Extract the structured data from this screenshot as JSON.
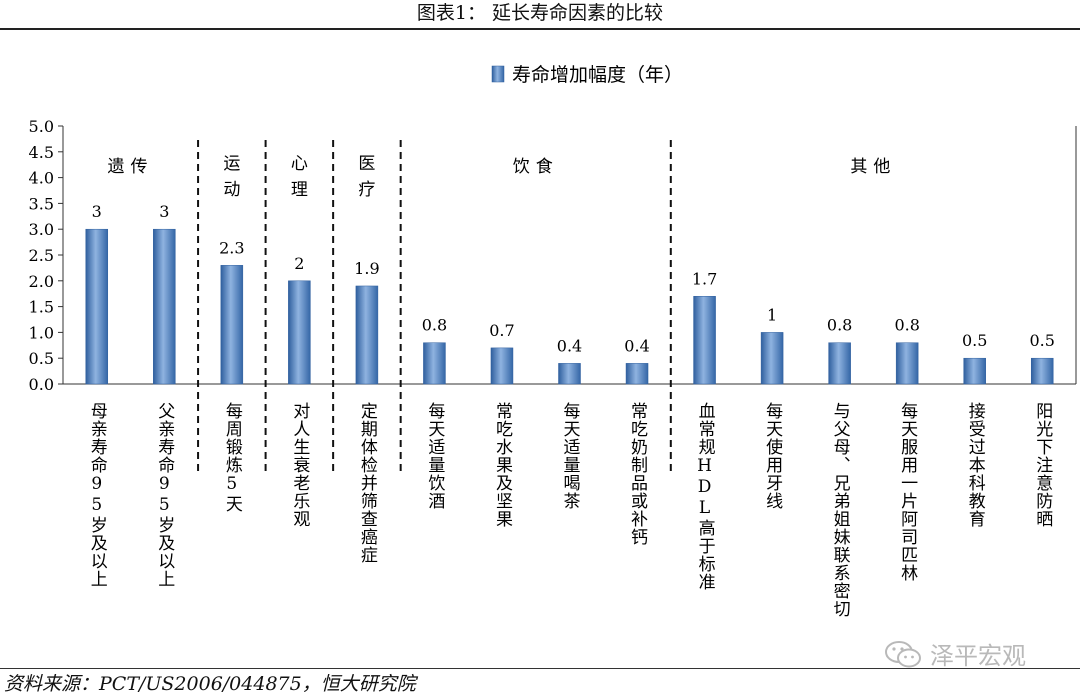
{
  "figure": {
    "title": "图表1：  延长寿命因素的比较",
    "source": "资料来源：PCT/US2006/044875，恒大研究院",
    "watermark": "泽平宏观"
  },
  "chart_data": {
    "type": "bar",
    "title": "",
    "legend": {
      "label": "寿命增加幅度（年）",
      "position": "top-center"
    },
    "ylim": [
      0,
      5
    ],
    "yticks": [
      "0.0",
      "0.5",
      "1.0",
      "1.5",
      "2.0",
      "2.5",
      "3.0",
      "3.5",
      "4.0",
      "4.5",
      "5.0"
    ],
    "xlabel": "",
    "ylabel": "",
    "series": [
      {
        "name": "寿命增加幅度（年）",
        "color": "#4f81bd",
        "values": [
          3,
          3,
          2.3,
          2,
          1.9,
          0.8,
          0.7,
          0.4,
          0.4,
          1.7,
          1,
          0.8,
          0.8,
          0.5,
          0.5
        ],
        "labels": [
          "3",
          "3",
          "2.3",
          "2",
          "1.9",
          "0.8",
          "0.7",
          "0.4",
          "0.4",
          "1.7",
          "1",
          "0.8",
          "0.8",
          "0.5",
          "0.5"
        ]
      }
    ],
    "categories": [
      "母亲寿命95岁及以上",
      "父亲寿命95岁及以上",
      "每周锻炼5天",
      "对人生衰老乐观",
      "定期体检并筛查癌症",
      "每天适量饮酒",
      "常吃水果及坚果",
      "每天适量喝茶",
      "常吃奶制品或补钙",
      "血常规HDL高于标准",
      "每天使用牙线",
      "与父母、兄弟姐妹联系密切",
      "每天服用一片阿司匹林",
      "接受过本科教育",
      "阳光下注意防晒"
    ],
    "groups": [
      {
        "label": "遗传",
        "start": 0,
        "end": 1
      },
      {
        "label": "运动",
        "start": 2,
        "end": 2
      },
      {
        "label": "心理",
        "start": 3,
        "end": 3
      },
      {
        "label": "医疗",
        "start": 4,
        "end": 4
      },
      {
        "label": "饮食",
        "start": 5,
        "end": 8
      },
      {
        "label": "其他",
        "start": 9,
        "end": 14
      }
    ],
    "grid": false
  }
}
